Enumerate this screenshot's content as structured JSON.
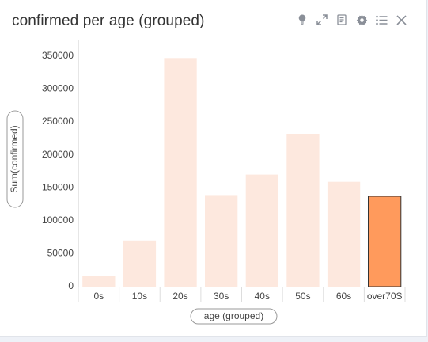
{
  "widget": {
    "title": "confirmed per age (grouped)",
    "toolbar_icons": [
      "lightbulb-icon",
      "expand-icon",
      "notes-icon",
      "gear-icon",
      "list-icon",
      "close-icon"
    ]
  },
  "chart_data": {
    "type": "bar",
    "title": "confirmed per age (grouped)",
    "xlabel": "age (grouped)",
    "ylabel": "Sum(confirmed)",
    "categories": [
      "0s",
      "10s",
      "20s",
      "30s",
      "40s",
      "50s",
      "60s",
      "over70S"
    ],
    "values": [
      16000,
      70000,
      347000,
      139000,
      170000,
      232000,
      159000,
      137000
    ],
    "highlighted_index": 7,
    "ylim": [
      0,
      375000
    ],
    "yticks": [
      0,
      50000,
      100000,
      150000,
      200000,
      250000,
      300000,
      350000
    ],
    "grid": false,
    "colors": {
      "bar": "#fde8de",
      "highlight": "#ff9a5c",
      "highlight_border": "#333333"
    }
  }
}
